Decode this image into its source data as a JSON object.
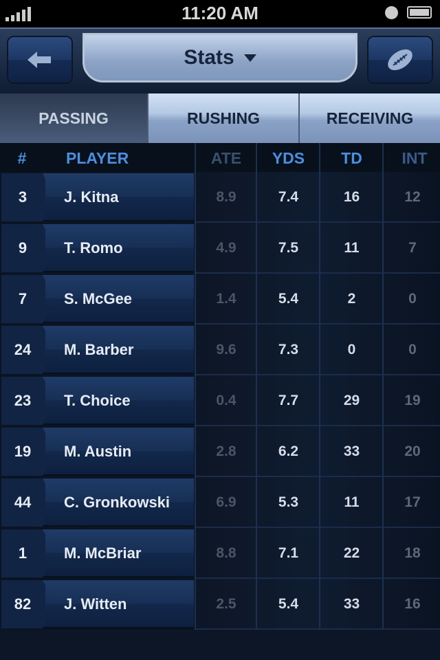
{
  "status_bar": {
    "time": "11:20 AM"
  },
  "nav": {
    "title": "Stats",
    "back_icon": "arrow-left-icon",
    "right_icon": "football-icon"
  },
  "tabs": [
    {
      "label": "PASSING",
      "active": true
    },
    {
      "label": "RUSHING",
      "active": false
    },
    {
      "label": "RECEIVING",
      "active": false
    }
  ],
  "columns": {
    "num": "#",
    "player": "PLAYER",
    "ate": "ATE",
    "yds": "YDS",
    "td": "TD",
    "int": "INT"
  },
  "colors": {
    "header_accent": "#4a8fe0"
  },
  "rows": [
    {
      "num": "3",
      "player": "J. Kitna",
      "ate": "8.9",
      "yds": "7.4",
      "td": "16",
      "int": "12"
    },
    {
      "num": "9",
      "player": "T. Romo",
      "ate": "4.9",
      "yds": "7.5",
      "td": "11",
      "int": "7"
    },
    {
      "num": "7",
      "player": "S. McGee",
      "ate": "1.4",
      "yds": "5.4",
      "td": "2",
      "int": "0"
    },
    {
      "num": "24",
      "player": "M. Barber",
      "ate": "9.6",
      "yds": "7.3",
      "td": "0",
      "int": "0"
    },
    {
      "num": "23",
      "player": "T. Choice",
      "ate": "0.4",
      "yds": "7.7",
      "td": "29",
      "int": "19"
    },
    {
      "num": "19",
      "player": "M. Austin",
      "ate": "2.8",
      "yds": "6.2",
      "td": "33",
      "int": "20"
    },
    {
      "num": "44",
      "player": "C. Gronkowski",
      "ate": "6.9",
      "yds": "5.3",
      "td": "11",
      "int": "17"
    },
    {
      "num": "1",
      "player": "M. McBriar",
      "ate": "8.8",
      "yds": "7.1",
      "td": "22",
      "int": "18"
    },
    {
      "num": "82",
      "player": "J. Witten",
      "ate": "2.5",
      "yds": "5.4",
      "td": "33",
      "int": "16"
    }
  ]
}
